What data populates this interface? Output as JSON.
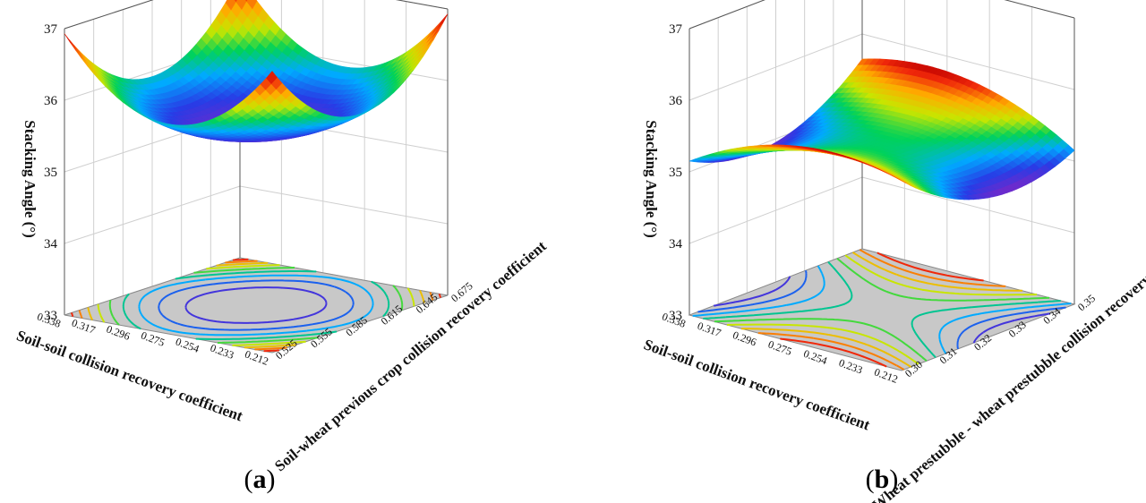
{
  "chart_data": [
    {
      "type": "surface",
      "panel_label": "a",
      "zlabel": "Stacking Angle (°)",
      "xlabel": "Soil-soil collision recovery coefficient",
      "ylabel": "Soil-wheat previous crop collision recovery coefficient",
      "x_ticks": [
        "0.338",
        "0.317",
        "0.296",
        "0.275",
        "0.254",
        "0.233",
        "0.212"
      ],
      "y_ticks": [
        "0.525",
        "0.555",
        "0.585",
        "0.615",
        "0.645",
        "0.675"
      ],
      "z_ticks": [
        "33",
        "34",
        "35",
        "36",
        "37"
      ],
      "zlim": [
        33,
        37
      ],
      "xlim": [
        0.212,
        0.338
      ],
      "ylim": [
        0.525,
        0.675
      ],
      "surface_description": "bowl-shaped surface, minimum ~35.4 near center, corners rising to ~36.9",
      "contour_colors": [
        "#8a2be2",
        "#1e90ff",
        "#00c853",
        "#c8e600",
        "#ff9800",
        "#e53935"
      ]
    },
    {
      "type": "surface",
      "panel_label": "b",
      "zlabel": "Stacking Angle (°)",
      "xlabel": "Soil-soil collision recovery coefficient",
      "ylabel": "Wheat prestubble - wheat prestubble collision recovery coefficient",
      "x_ticks": [
        "0.338",
        "0.317",
        "0.296",
        "0.275",
        "0.254",
        "0.233",
        "0.212"
      ],
      "y_ticks": [
        "0.30",
        "0.31",
        "0.32",
        "0.33",
        "0.34",
        "0.35"
      ],
      "z_ticks": [
        "33",
        "34",
        "35",
        "36",
        "37"
      ],
      "zlim": [
        33,
        37
      ],
      "xlim": [
        0.212,
        0.338
      ],
      "ylim": [
        0.3,
        0.35
      ],
      "surface_description": "saddle-shaped surface ranging ~34.9 to ~35.8",
      "contour_colors": [
        "#8a2be2",
        "#1e90ff",
        "#00c853",
        "#c8e600",
        "#ff9800",
        "#e53935"
      ]
    }
  ]
}
